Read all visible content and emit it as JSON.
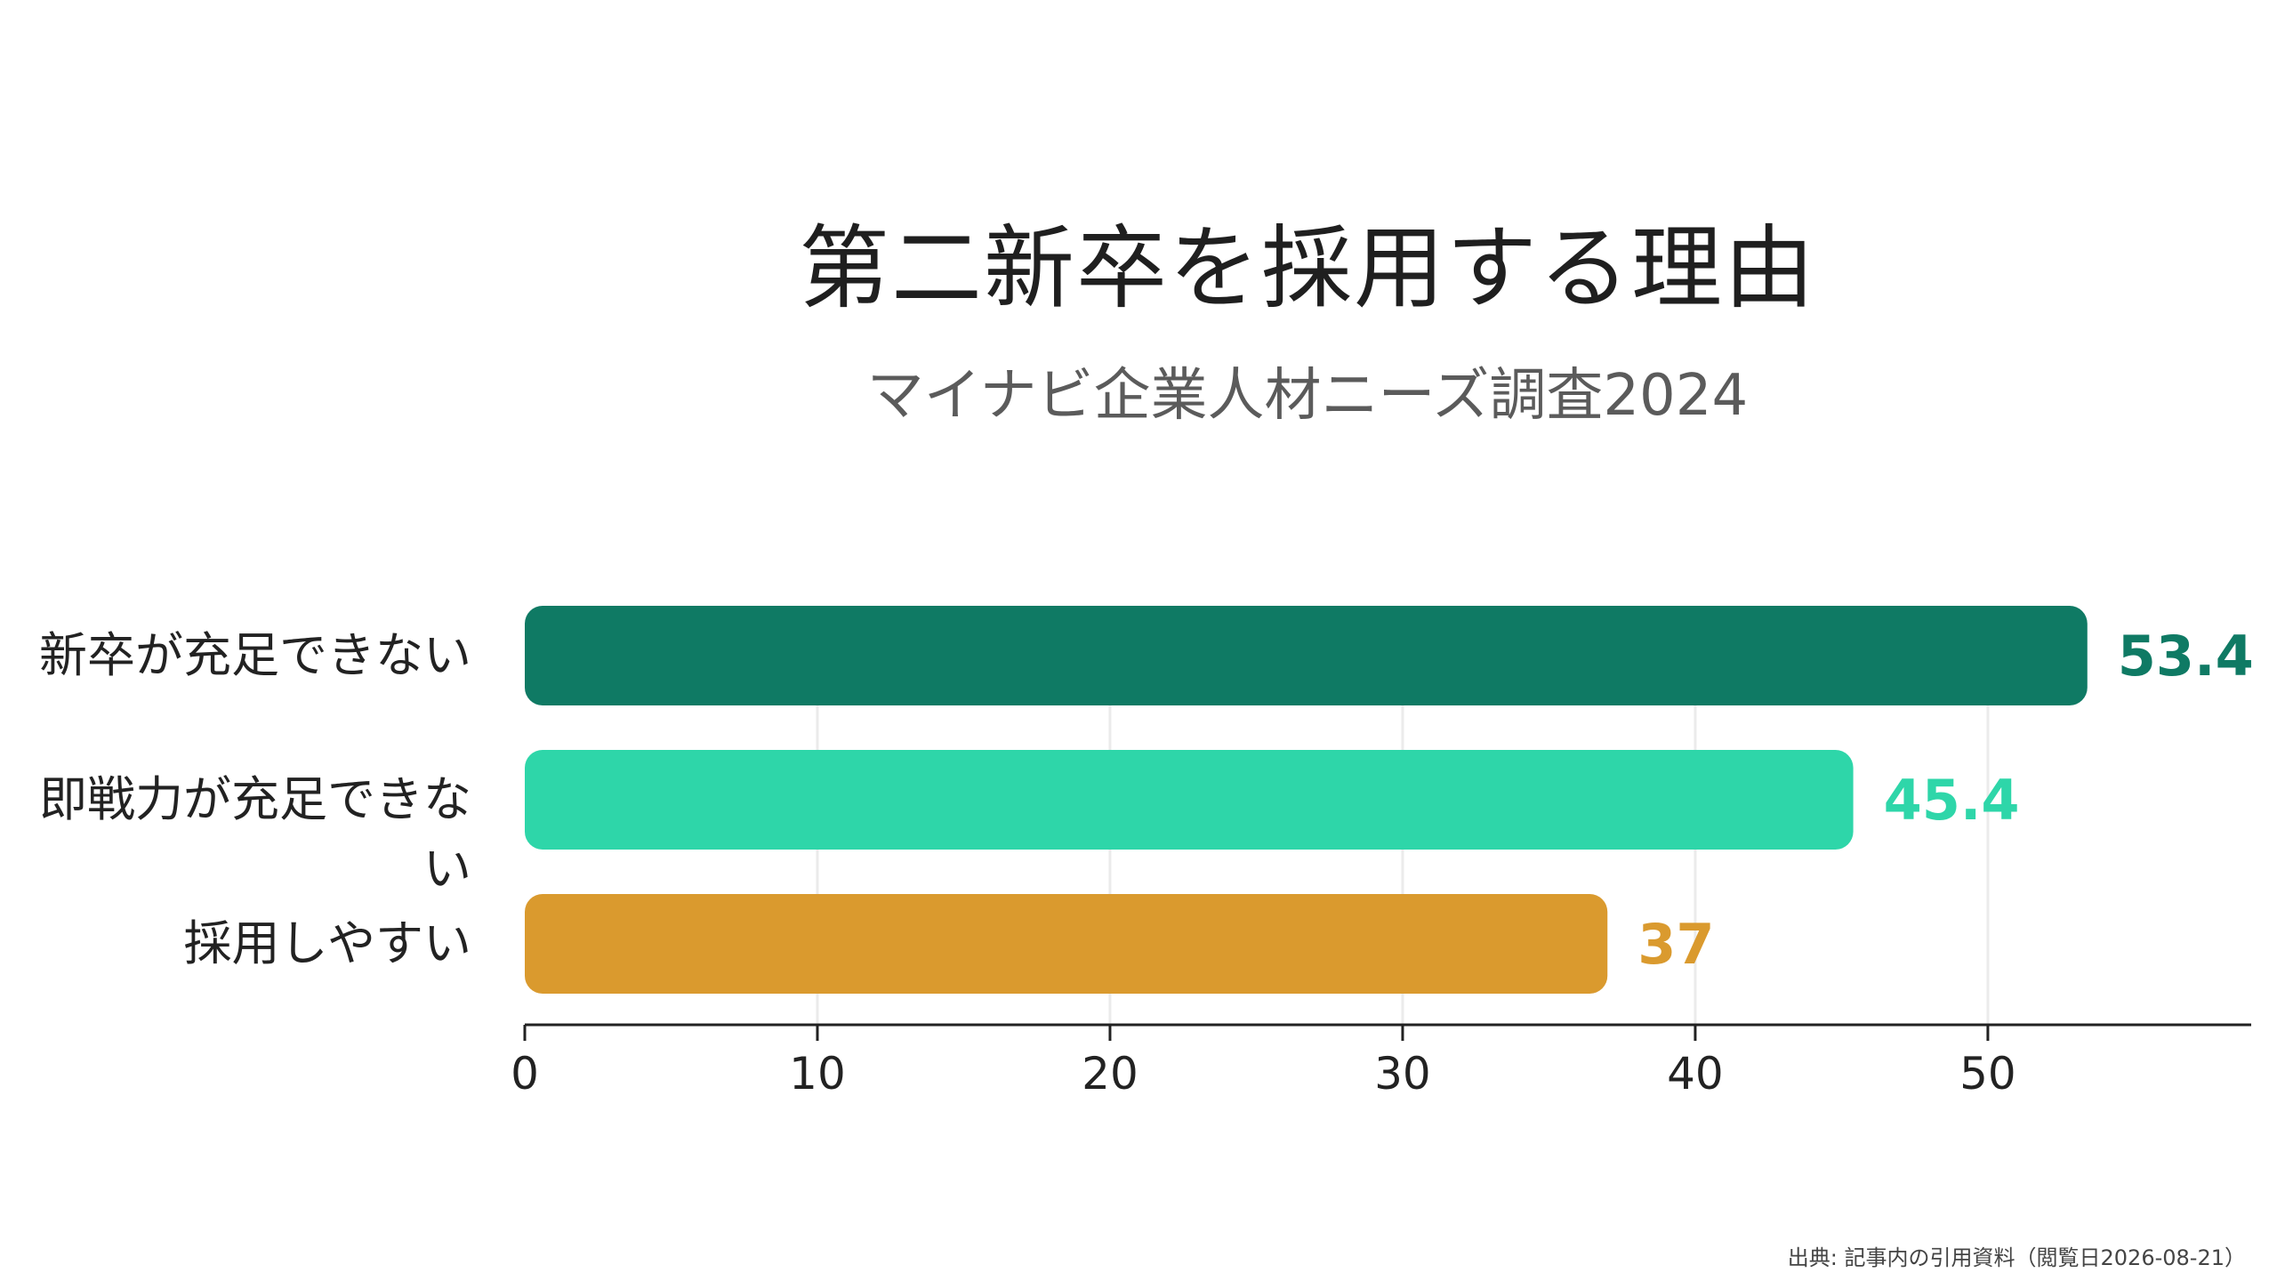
{
  "chart_data": {
    "type": "bar",
    "orientation": "horizontal",
    "title": "第二新卒を採用する理由",
    "subtitle": "マイナビ企業人材ニーズ調査2024",
    "categories": [
      "新卒が充足できない",
      "即戦力が充足できない",
      "採用しやすい"
    ],
    "values": [
      53.4,
      45.4,
      37
    ],
    "value_labels": [
      "53.4",
      "45.4",
      "37"
    ],
    "colors": [
      "#0f7a64",
      "#2ed6a9",
      "#da9a2e"
    ],
    "xlim": [
      0,
      59
    ],
    "xticks": [
      0,
      10,
      20,
      30,
      40,
      50
    ],
    "xtick_labels": [
      "0",
      "10",
      "20",
      "30",
      "40",
      "50"
    ],
    "xlabel": "",
    "ylabel": "",
    "grid": "vertical",
    "legend": "none"
  },
  "source_note": "出典: 記事内の引用資料（閲覧日2026-08-21）"
}
